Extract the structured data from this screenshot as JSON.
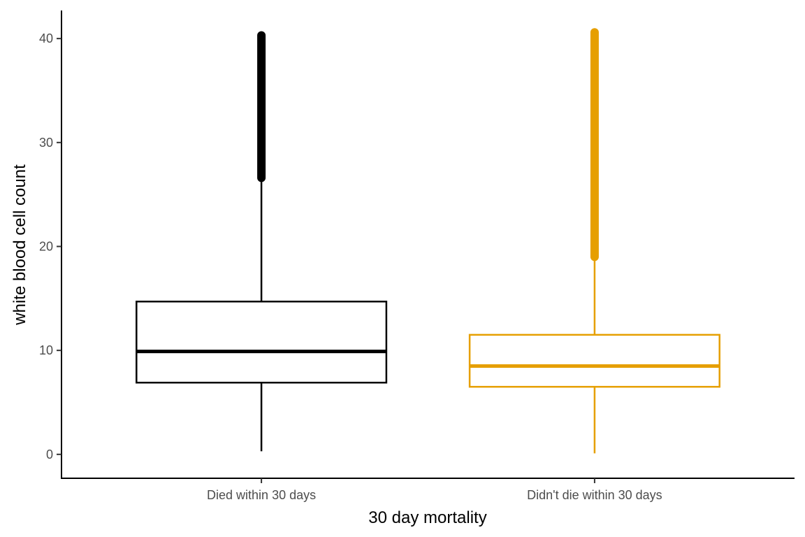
{
  "chart_data": {
    "type": "boxplot",
    "title": "",
    "xlabel": "30 day mortality",
    "ylabel": "white blood cell count",
    "ylim": [
      -2.3,
      42.7
    ],
    "yticks": [
      0,
      10,
      20,
      30,
      40
    ],
    "grid": false,
    "legend": "none",
    "categories": [
      "Died within 30 days",
      "Didn't die within 30 days"
    ],
    "series": [
      {
        "category": "Died within 30 days",
        "color": "#000000",
        "whisker_low": 0.3,
        "q1": 6.9,
        "median": 9.9,
        "q3": 14.7,
        "whisker_high": 26.6,
        "outlier_min": 26.6,
        "outlier_max": 40.3
      },
      {
        "category": "Didn't die within 30 days",
        "color": "#E69F00",
        "whisker_low": 0.1,
        "q1": 6.5,
        "median": 8.5,
        "q3": 11.5,
        "whisker_high": 19.0,
        "outlier_min": 19.0,
        "outlier_max": 40.6
      }
    ]
  }
}
